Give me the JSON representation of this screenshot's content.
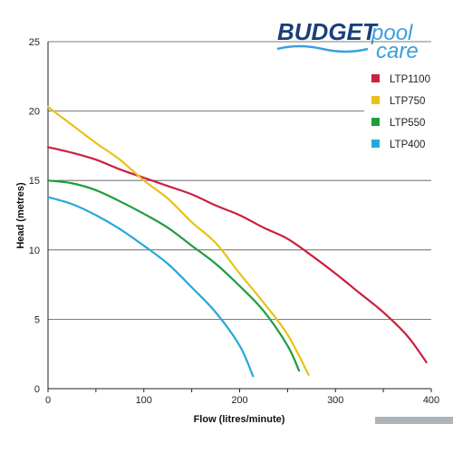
{
  "chart_data": {
    "type": "line",
    "xlabel": "Flow (litres/minute)",
    "ylabel": "Head (metres)",
    "xlim": [
      0,
      400
    ],
    "ylim": [
      0,
      25
    ],
    "x_ticks": [
      "0",
      "100",
      "200",
      "300",
      "400"
    ],
    "y_ticks": [
      "0",
      "5",
      "10",
      "15",
      "20",
      "25"
    ],
    "grid": "horizontal",
    "legend_position": "top-right",
    "series": [
      {
        "name": "LTP1100",
        "color": "#cc1f3f",
        "x": [
          0,
          25,
          50,
          75,
          100,
          125,
          150,
          175,
          200,
          225,
          250,
          275,
          300,
          325,
          350,
          375,
          395
        ],
        "y": [
          17.4,
          17.0,
          16.5,
          15.8,
          15.2,
          14.6,
          14.0,
          13.2,
          12.5,
          11.6,
          10.8,
          9.6,
          8.3,
          6.9,
          5.5,
          3.8,
          1.9
        ]
      },
      {
        "name": "LTP750",
        "color": "#e8c21a",
        "x": [
          0,
          25,
          50,
          75,
          100,
          125,
          150,
          175,
          200,
          225,
          250,
          272
        ],
        "y": [
          20.3,
          19.0,
          17.7,
          16.5,
          15.0,
          13.7,
          12.0,
          10.5,
          8.3,
          6.2,
          3.9,
          1.0
        ]
      },
      {
        "name": "LTP550",
        "color": "#1f9d3d",
        "x": [
          0,
          25,
          50,
          75,
          100,
          125,
          150,
          175,
          200,
          225,
          250,
          262
        ],
        "y": [
          15.0,
          14.8,
          14.3,
          13.5,
          12.6,
          11.6,
          10.3,
          9.0,
          7.4,
          5.6,
          3.1,
          1.3
        ]
      },
      {
        "name": "LTP400",
        "color": "#25a9dc",
        "x": [
          0,
          25,
          50,
          75,
          100,
          125,
          150,
          175,
          200,
          214
        ],
        "y": [
          13.8,
          13.3,
          12.5,
          11.5,
          10.3,
          9.0,
          7.3,
          5.5,
          3.1,
          0.9
        ]
      }
    ]
  },
  "logo": {
    "word1": "BUDGET",
    "word2": "pool",
    "word3": "care",
    "color_dark": "#1a3f7a",
    "color_light": "#3aa0dd"
  }
}
